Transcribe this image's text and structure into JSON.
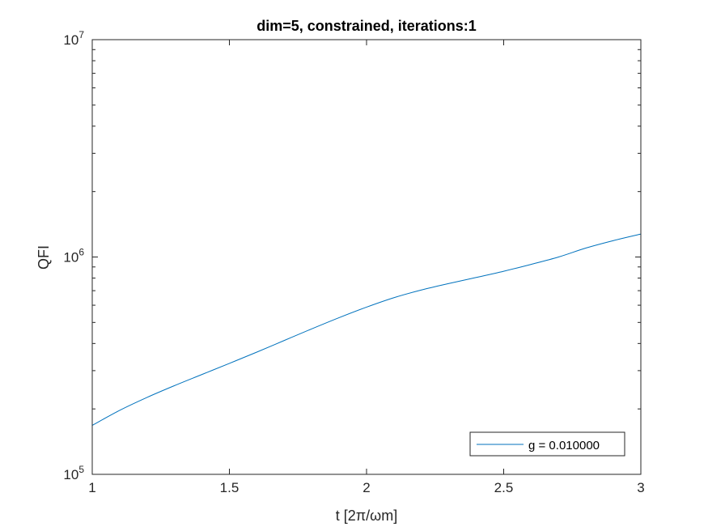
{
  "chart_data": {
    "type": "line",
    "title": "dim=5, constrained, iterations:1",
    "xlabel": "t [2π/ωm]",
    "ylabel": "QFI",
    "xlim": [
      1,
      3
    ],
    "ylim": [
      100000,
      10000000
    ],
    "yscale": "log",
    "grid": false,
    "legend_position": "bottom-right",
    "x_ticks": [
      {
        "value": 1,
        "label": "1"
      },
      {
        "value": 1.5,
        "label": "1.5"
      },
      {
        "value": 2,
        "label": "2"
      },
      {
        "value": 2.5,
        "label": "2.5"
      },
      {
        "value": 3,
        "label": "3"
      }
    ],
    "y_ticks": [
      {
        "value": 100000,
        "base": "10",
        "exp": "5"
      },
      {
        "value": 1000000,
        "base": "10",
        "exp": "6"
      },
      {
        "value": 10000000,
        "base": "10",
        "exp": "7"
      }
    ],
    "series": [
      {
        "name": "g = 0.010000",
        "color": "#0072BD",
        "x": [
          1.0,
          1.1,
          1.2,
          1.3,
          1.4,
          1.5,
          1.6,
          1.7,
          1.8,
          1.9,
          2.0,
          2.1,
          2.2,
          2.3,
          2.4,
          2.5,
          2.6,
          2.7,
          2.8,
          2.9,
          3.0
        ],
        "y": [
          168000,
          197000,
          226000,
          256000,
          288000,
          324000,
          365000,
          413000,
          467000,
          526000,
          588000,
          650000,
          705000,
          755000,
          805000,
          860000,
          925000,
          1000000,
          1100000,
          1190000,
          1275000
        ]
      }
    ]
  }
}
